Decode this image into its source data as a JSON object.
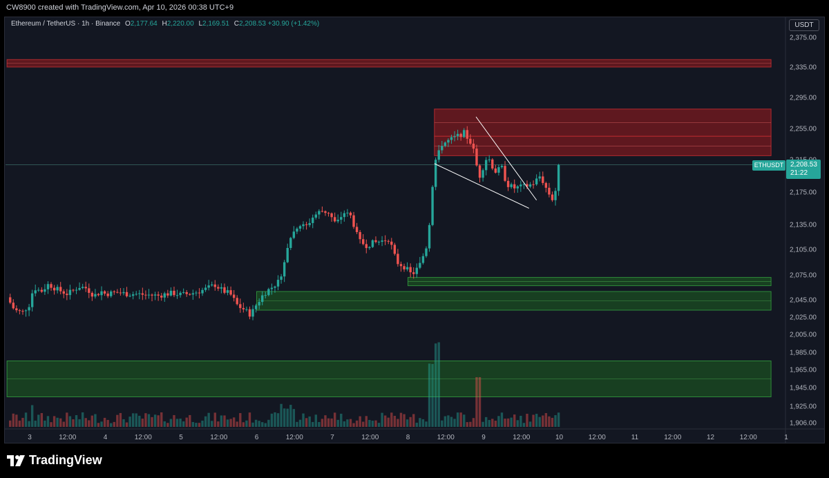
{
  "header": {
    "credit": "CW8900 created with TradingView.com, Apr 10, 2026 00:38 UTC+9"
  },
  "legend": {
    "symbol_line": "Ethereum / TetherUS · 1h · Binance",
    "o_label": "O",
    "o_value": "2,177.64",
    "h_label": "H",
    "h_value": "2,220.00",
    "l_label": "L",
    "l_value": "2,169.51",
    "c_label": "C",
    "c_value": "2,208.53",
    "change": "+30.90 (+1.42%)"
  },
  "price_axis": {
    "currency": "USDT",
    "last_symbol": "ETHUSDT",
    "last_price": "2,208.53",
    "countdown": "21:22"
  },
  "brand": {
    "name": "TradingView"
  },
  "colors": {
    "up": "#26a69a",
    "down": "#ef5350",
    "background": "#131722",
    "supply_zone": "#8b1a1a",
    "demand_zone": "#1e6b2a"
  },
  "chart_data": {
    "type": "candlestick",
    "symbol": "ETHUSDT",
    "timeframe": "1h",
    "y_axis": {
      "ticks": [
        2375,
        2335,
        2295,
        2255,
        2215,
        2175,
        2135,
        2105,
        2075,
        2045,
        2025,
        2005,
        1985,
        1965,
        1945,
        1925,
        1906
      ],
      "tick_labels": [
        "2,375.00",
        "2,335.00",
        "2,295.00",
        "2,255.00",
        "2,215.00",
        "2,175.00",
        "2,135.00",
        "2,105.00",
        "2,075.00",
        "2,045.00",
        "2,025.00",
        "2,005.00",
        "1,985.00",
        "1,965.00",
        "1,945.00",
        "1,925.00",
        "1,906.00"
      ]
    },
    "x_axis": {
      "ticks": [
        3,
        3.5,
        4,
        4.5,
        5,
        5.5,
        6,
        6.5,
        7,
        7.5,
        8,
        8.5,
        9,
        9.5,
        10,
        10.5,
        11,
        11.5,
        12,
        12.5,
        1
      ],
      "tick_labels": [
        "3",
        "12:00",
        "4",
        "12:00",
        "5",
        "12:00",
        "6",
        "12:00",
        "7",
        "12:00",
        "8",
        "12:00",
        "9",
        "12:00",
        "10",
        "12:00",
        "11",
        "12:00",
        "12",
        "12:00",
        "1"
      ]
    },
    "close_path": [
      [
        2.7,
        2048
      ],
      [
        2.8,
        2033
      ],
      [
        2.9,
        2030
      ],
      [
        3.0,
        2040
      ],
      [
        3.05,
        2060
      ],
      [
        3.15,
        2055
      ],
      [
        3.25,
        2064
      ],
      [
        3.35,
        2058
      ],
      [
        3.5,
        2052
      ],
      [
        3.65,
        2061
      ],
      [
        3.75,
        2059
      ],
      [
        3.85,
        2050
      ],
      [
        3.95,
        2055
      ],
      [
        4.0,
        2052
      ],
      [
        4.15,
        2054
      ],
      [
        4.3,
        2052
      ],
      [
        4.4,
        2052
      ],
      [
        4.55,
        2051
      ],
      [
        4.7,
        2050
      ],
      [
        4.8,
        2052
      ],
      [
        4.9,
        2053
      ],
      [
        5.0,
        2051
      ],
      [
        5.15,
        2053
      ],
      [
        5.3,
        2057
      ],
      [
        5.45,
        2063
      ],
      [
        5.55,
        2056
      ],
      [
        5.65,
        2052
      ],
      [
        5.75,
        2038
      ],
      [
        5.85,
        2033
      ],
      [
        5.9,
        2028
      ],
      [
        5.95,
        2032
      ],
      [
        6.0,
        2040
      ],
      [
        6.1,
        2053
      ],
      [
        6.2,
        2060
      ],
      [
        6.3,
        2068
      ],
      [
        6.35,
        2085
      ],
      [
        6.45,
        2120
      ],
      [
        6.55,
        2135
      ],
      [
        6.65,
        2132
      ],
      [
        6.75,
        2145
      ],
      [
        6.85,
        2152
      ],
      [
        6.95,
        2150
      ],
      [
        7.05,
        2135
      ],
      [
        7.15,
        2150
      ],
      [
        7.25,
        2145
      ],
      [
        7.35,
        2115
      ],
      [
        7.45,
        2110
      ],
      [
        7.55,
        2113
      ],
      [
        7.65,
        2115
      ],
      [
        7.75,
        2118
      ],
      [
        7.85,
        2090
      ],
      [
        7.95,
        2085
      ],
      [
        8.05,
        2075
      ],
      [
        8.15,
        2085
      ],
      [
        8.25,
        2110
      ],
      [
        8.3,
        2150
      ],
      [
        8.35,
        2210
      ],
      [
        8.45,
        2235
      ],
      [
        8.55,
        2240
      ],
      [
        8.65,
        2245
      ],
      [
        8.75,
        2250
      ],
      [
        8.8,
        2240
      ],
      [
        8.85,
        2235
      ],
      [
        8.9,
        2210
      ],
      [
        8.95,
        2195
      ],
      [
        9.05,
        2220
      ],
      [
        9.15,
        2200
      ],
      [
        9.25,
        2205
      ],
      [
        9.3,
        2185
      ],
      [
        9.4,
        2180
      ],
      [
        9.55,
        2182
      ],
      [
        9.65,
        2185
      ],
      [
        9.75,
        2195
      ],
      [
        9.85,
        2175
      ],
      [
        9.92,
        2165
      ],
      [
        9.97,
        2185
      ],
      [
        10.0,
        2208.53
      ]
    ],
    "annotations": [
      {
        "kind": "supply-zone",
        "x_from": 2.7,
        "x_to": 12.8,
        "y_from": 2335,
        "y_to": 2345
      },
      {
        "kind": "supply-zone",
        "x_from": 8.35,
        "x_to": 12.8,
        "y_from": 2245,
        "y_to": 2280
      },
      {
        "kind": "supply-zone",
        "x_from": 8.35,
        "x_to": 12.8,
        "y_from": 2220,
        "y_to": 2245
      },
      {
        "kind": "demand-zone",
        "x_from": 8.0,
        "x_to": 12.8,
        "y_from": 2062,
        "y_to": 2072
      },
      {
        "kind": "demand-zone",
        "x_from": 6.0,
        "x_to": 12.8,
        "y_from": 2033,
        "y_to": 2055
      },
      {
        "kind": "demand-zone",
        "x_from": 2.7,
        "x_to": 12.8,
        "y_from": 1935,
        "y_to": 1975
      },
      {
        "kind": "trendline",
        "from": [
          8.35,
          2210
        ],
        "to": [
          9.6,
          2155
        ]
      },
      {
        "kind": "trendline",
        "from": [
          8.9,
          2270
        ],
        "to": [
          9.7,
          2165
        ]
      }
    ]
  }
}
